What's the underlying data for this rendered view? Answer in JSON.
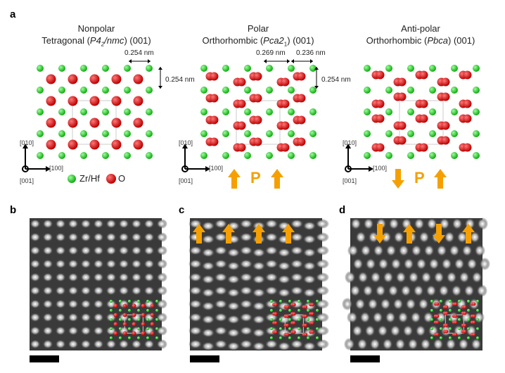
{
  "panel_labels": {
    "a": "a",
    "b": "b",
    "c": "c",
    "d": "d"
  },
  "structures": [
    {
      "line1": "Nonpolar",
      "line2_prefix": "Tetragonal (",
      "group_a": "P4",
      "group_sub": "2",
      "group_b": "/nmc",
      "line2_suffix": ") (001)",
      "type": "tetragonal"
    },
    {
      "line1": "Polar",
      "line2_prefix": "Orthorhombic (",
      "group_a": "Pca2",
      "group_sub": "1",
      "group_b": "",
      "line2_suffix": ") (001)",
      "type": "polar"
    },
    {
      "line1": "Anti-polar",
      "line2_prefix": "Orthorhombic (",
      "group_a": "Pbca",
      "group_sub": "",
      "group_b": "",
      "line2_suffix": ") (001)",
      "type": "antipolar"
    }
  ],
  "measurements": {
    "tet_h": "0.254 nm",
    "tet_v": "0.254 nm",
    "polar_h1": "0.269 nm",
    "polar_h2": "0.236 nm",
    "polar_v": "0.254 nm"
  },
  "axes": {
    "y": "[010]",
    "x": "[100]",
    "z": "[001]"
  },
  "legend": {
    "zr": "Zr/Hf",
    "o": "O"
  },
  "polarization_label": "P",
  "colors": {
    "zr": "#22cc22",
    "o": "#dd1111",
    "arrow": "#f5a000"
  }
}
